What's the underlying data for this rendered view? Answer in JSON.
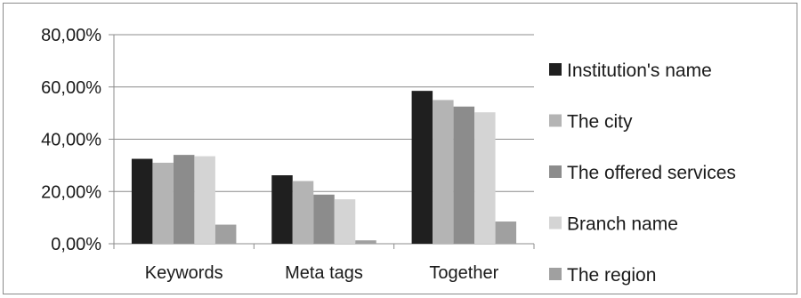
{
  "chart_data": {
    "type": "bar",
    "title": "",
    "xlabel": "",
    "ylabel": "",
    "categories": [
      "Keywords",
      "Meta tags",
      "Together"
    ],
    "series": [
      {
        "name": "Institution's name",
        "color": "#1f1f1f",
        "values": [
          32.5,
          26.2,
          58.5
        ]
      },
      {
        "name": "The city",
        "color": "#b4b4b4",
        "values": [
          31.0,
          24.0,
          55.0
        ]
      },
      {
        "name": "The offered services",
        "color": "#8c8c8c",
        "values": [
          34.0,
          18.8,
          52.5
        ]
      },
      {
        "name": "Branch name",
        "color": "#d4d4d4",
        "values": [
          33.5,
          17.0,
          50.3
        ]
      },
      {
        "name": "The region",
        "color": "#a0a0a0",
        "values": [
          7.3,
          1.3,
          8.5
        ]
      }
    ],
    "ylim": [
      0,
      80
    ],
    "yticks": [
      "0,00%",
      "20,00%",
      "40,00%",
      "60,00%",
      "80,00%"
    ],
    "ytick_values": [
      0,
      20,
      40,
      60,
      80
    ],
    "grid": true,
    "legend": "right"
  }
}
